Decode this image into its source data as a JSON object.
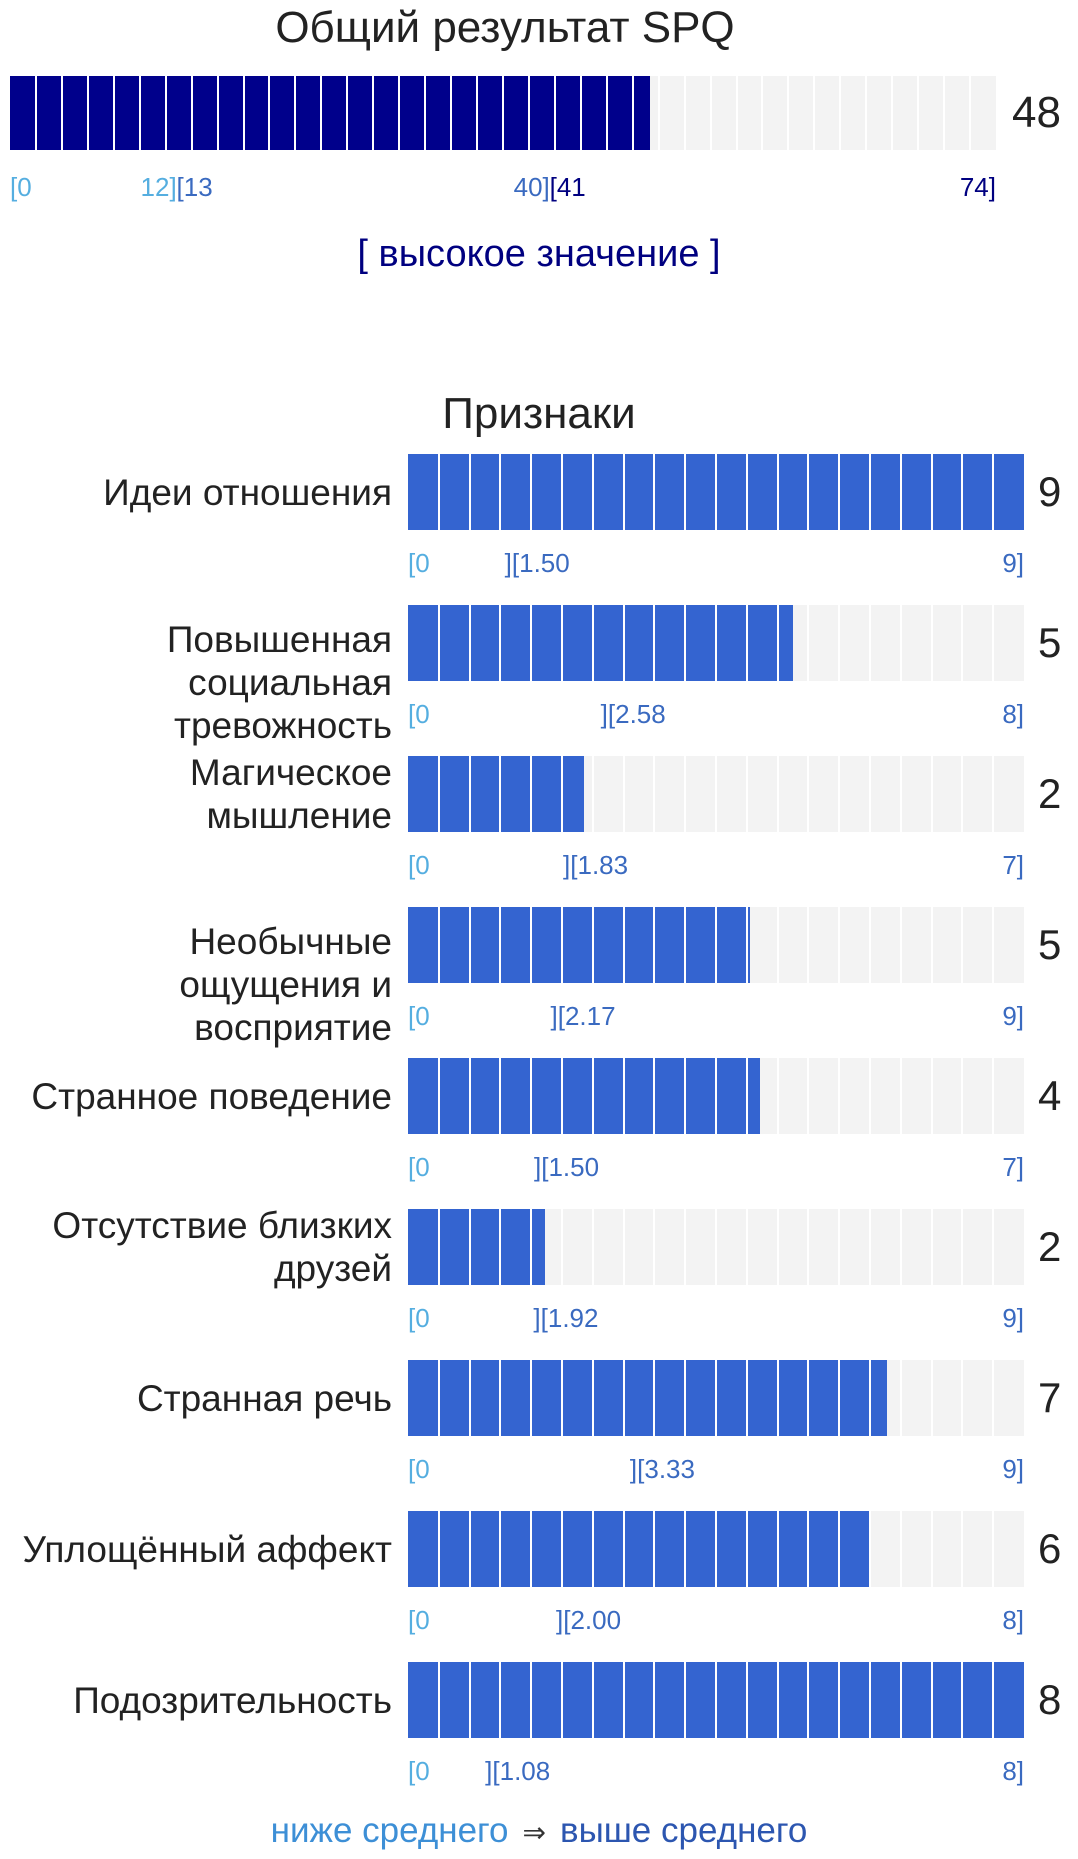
{
  "total": {
    "title": "Общий результат SPQ",
    "value": "48",
    "score": 48,
    "max": 74,
    "ticks": {
      "start": "[0",
      "low_end": "12]",
      "mid_start": "[13",
      "mid_end": "40]",
      "high_start": "[41",
      "end": "74]"
    },
    "low_threshold": 12.5,
    "high_threshold": 40.5,
    "verdict": "[ высокое значение ]",
    "fill_color": "#00008b"
  },
  "traits_section_title": "Признаки",
  "traits": [
    {
      "label": "Идеи отношения",
      "value": "9",
      "score": 9,
      "max": 9,
      "start": "[0",
      "threshold_label": "][1.50",
      "threshold": 1.5,
      "end": "9]"
    },
    {
      "label": "Повышенная социальная тревожность",
      "value": "5",
      "score": 5,
      "max": 8,
      "start": "[0",
      "threshold_label": "][2.58",
      "threshold": 2.58,
      "end": "8]"
    },
    {
      "label": "Магическое мышление",
      "value": "2",
      "score": 2,
      "max": 7,
      "start": "[0",
      "threshold_label": "][1.83",
      "threshold": 1.83,
      "end": "7]"
    },
    {
      "label": "Необычные ощущения и восприятие",
      "value": "5",
      "score": 5,
      "max": 9,
      "start": "[0",
      "threshold_label": "][2.17",
      "threshold": 2.17,
      "end": "9]"
    },
    {
      "label": "Странное поведение",
      "value": "4",
      "score": 4,
      "max": 7,
      "start": "[0",
      "threshold_label": "][1.50",
      "threshold": 1.5,
      "end": "7]"
    },
    {
      "label": "Отсутствие близких друзей",
      "value": "2",
      "score": 2,
      "max": 9,
      "start": "[0",
      "threshold_label": "][1.92",
      "threshold": 1.92,
      "end": "9]"
    },
    {
      "label": "Странная речь",
      "value": "7",
      "score": 7,
      "max": 9,
      "start": "[0",
      "threshold_label": "][3.33",
      "threshold": 3.33,
      "end": "9]"
    },
    {
      "label": "Уплощённый аффект",
      "value": "6",
      "score": 6,
      "max": 8,
      "start": "[0",
      "threshold_label": "][2.00",
      "threshold": 2.0,
      "end": "8]"
    },
    {
      "label": "Подозрительность",
      "value": "8",
      "score": 8,
      "max": 8,
      "start": "[0",
      "threshold_label": "][1.08",
      "threshold": 1.08,
      "end": "8]"
    }
  ],
  "legend": {
    "below": "ниже среднего",
    "arrow": "⇒",
    "above": "выше среднего"
  },
  "colors": {
    "trait_fill": "#3464d0",
    "track": "#f3f3f3",
    "tick_low": "#55aee0",
    "tick_mid": "#3a6ac0",
    "tick_high": "#000080"
  }
}
